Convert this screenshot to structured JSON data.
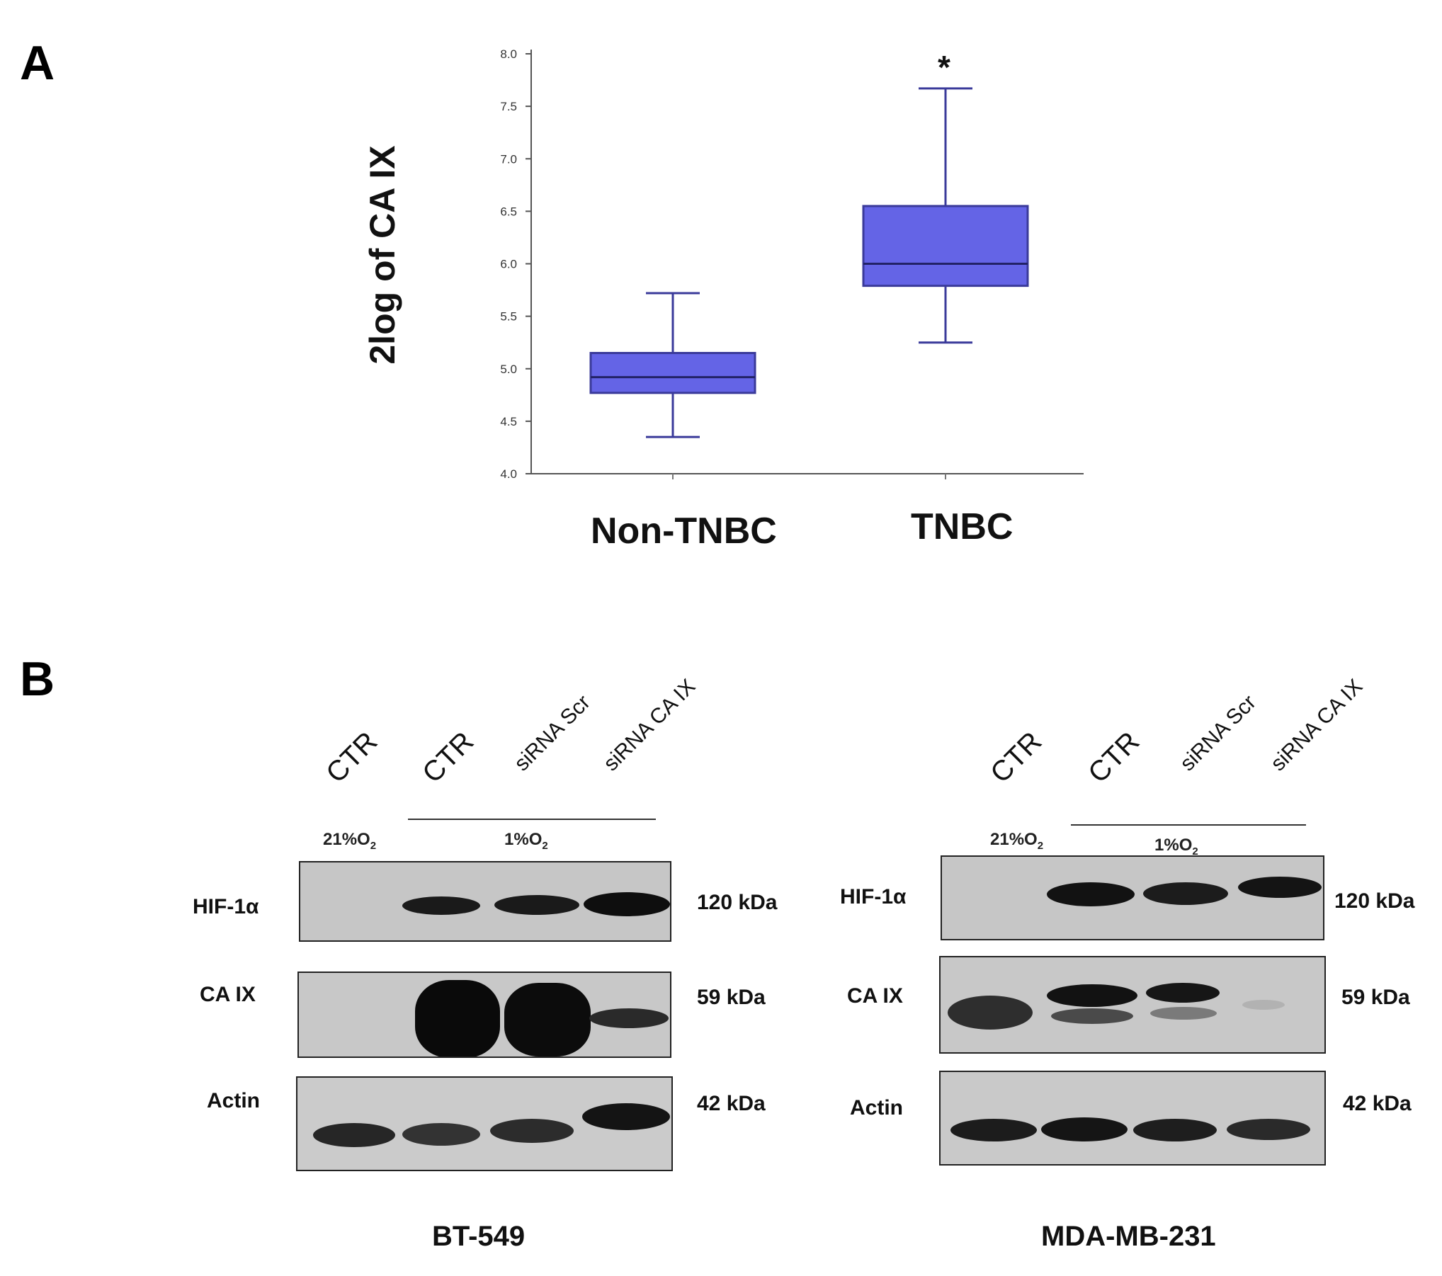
{
  "panel_a": {
    "letter": "A",
    "significance_marker": "*",
    "chart_data": {
      "type": "box",
      "ylabel": "2log of CA IX",
      "xlabel": "",
      "ylim": [
        4.0,
        8.0
      ],
      "yticks": [
        "4.0",
        "4.5",
        "5.0",
        "5.5",
        "6.0",
        "6.5",
        "7.0",
        "7.5",
        "8.0"
      ],
      "categories": [
        "Non-TNBC",
        "TNBC"
      ],
      "series": [
        {
          "category": "Non-TNBC",
          "min": 4.35,
          "q1": 4.77,
          "median": 4.92,
          "q3": 5.15,
          "max": 5.72
        },
        {
          "category": "TNBC",
          "min": 5.25,
          "q1": 5.79,
          "median": 6.0,
          "q3": 6.55,
          "max": 7.67
        }
      ],
      "box_color": "#6464e6",
      "line_color": "#3a3a9a"
    }
  },
  "panel_b": {
    "letter": "B",
    "blots": [
      {
        "cell_line": "BT-549",
        "lanes": [
          "CTR",
          "CTR",
          "siRNA Scr",
          "siRNA CA IX"
        ],
        "conditions": {
          "normoxia": "21%O",
          "hypoxia": "1%O",
          "subscript": "2"
        },
        "rows": [
          {
            "protein": "HIF-1α",
            "kda": "120 kDa"
          },
          {
            "protein": "CA IX",
            "kda": "59 kDa"
          },
          {
            "protein": "Actin",
            "kda": "42 kDa"
          }
        ]
      },
      {
        "cell_line": "MDA-MB-231",
        "lanes": [
          "CTR",
          "CTR",
          "siRNA Scr",
          "siRNA CA IX"
        ],
        "conditions": {
          "normoxia": "21%O",
          "hypoxia": "1%O",
          "subscript": "2"
        },
        "rows": [
          {
            "protein": "HIF-1α",
            "kda": "120 kDa"
          },
          {
            "protein": "CA IX",
            "kda": "59 kDa"
          },
          {
            "protein": "Actin",
            "kda": "42 kDa"
          }
        ]
      }
    ]
  }
}
